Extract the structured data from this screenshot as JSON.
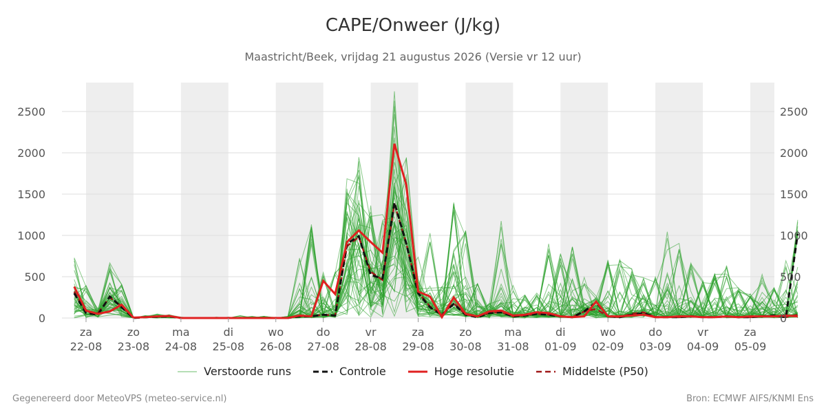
{
  "chart_data": {
    "type": "line",
    "title": "CAPE/Onweer (J/kg)",
    "subtitle": "Maastricht/Beek, vrijdag 21 augustus 2026 (Versie vr 12 uur)",
    "ylim": [
      0,
      2850
    ],
    "y_ticks": [
      0,
      500,
      1000,
      1500,
      2000,
      2500
    ],
    "x_ticks": [
      {
        "day": "za",
        "date": "22-08"
      },
      {
        "day": "zo",
        "date": "23-08"
      },
      {
        "day": "ma",
        "date": "24-08"
      },
      {
        "day": "di",
        "date": "25-08"
      },
      {
        "day": "wo",
        "date": "26-08"
      },
      {
        "day": "do",
        "date": "27-08"
      },
      {
        "day": "vr",
        "date": "28-08"
      },
      {
        "day": "za",
        "date": "29-08"
      },
      {
        "day": "zo",
        "date": "30-08"
      },
      {
        "day": "ma",
        "date": "31-08"
      },
      {
        "day": "di",
        "date": "01-09"
      },
      {
        "day": "wo",
        "date": "02-09"
      },
      {
        "day": "do",
        "date": "03-09"
      },
      {
        "day": "vr",
        "date": "04-09"
      },
      {
        "day": "za",
        "date": "05-09"
      }
    ],
    "x_start": "2026-08-21 18:00",
    "x_step_hours": 6,
    "x_end": "2026-09-05 12:00",
    "grid": true,
    "legend_position": "bottom",
    "colors": {
      "ensemble": "#2ca02c",
      "control": "#111111",
      "hires": "#e02020",
      "median": "#a01818",
      "weekend_band": "#eeeeee",
      "grid": "#dddddd"
    },
    "series": [
      {
        "name": "Hoge resolutie",
        "style": "solid",
        "values": [
          380,
          90,
          50,
          80,
          160,
          5,
          10,
          20,
          25,
          0,
          0,
          0,
          0,
          0,
          0,
          0,
          0,
          0,
          0,
          30,
          20,
          450,
          290,
          920,
          1060,
          920,
          790,
          2110,
          1610,
          320,
          260,
          10,
          250,
          50,
          20,
          80,
          90,
          30,
          40,
          70,
          60,
          20,
          10,
          20,
          200,
          20,
          20,
          30,
          40,
          10,
          10,
          20,
          20,
          10,
          10,
          20,
          10,
          20,
          20,
          20,
          30,
          20
        ]
      },
      {
        "name": "Controle",
        "style": "dashed",
        "values": [
          300,
          60,
          40,
          260,
          130,
          0,
          10,
          15,
          20,
          0,
          0,
          0,
          0,
          0,
          0,
          0,
          0,
          0,
          0,
          20,
          20,
          40,
          30,
          900,
          990,
          520,
          480,
          1400,
          900,
          300,
          130,
          40,
          170,
          40,
          10,
          60,
          70,
          20,
          30,
          50,
          40,
          20,
          10,
          80,
          190,
          20,
          10,
          40,
          60,
          10,
          10,
          10,
          20,
          10,
          10,
          20,
          10,
          10,
          20,
          30,
          10,
          1020
        ]
      },
      {
        "name": "Middelste (P50)",
        "style": "dashed",
        "values": [
          320,
          70,
          60,
          250,
          140,
          0,
          10,
          15,
          20,
          0,
          0,
          0,
          0,
          0,
          0,
          0,
          0,
          0,
          0,
          20,
          20,
          40,
          30,
          870,
          980,
          560,
          460,
          1380,
          900,
          310,
          140,
          40,
          180,
          40,
          20,
          60,
          70,
          20,
          30,
          50,
          40,
          20,
          10,
          80,
          110,
          20,
          10,
          50,
          70,
          10,
          10,
          10,
          20,
          10,
          10,
          20,
          10,
          10,
          20,
          20,
          10,
          40
        ]
      },
      {
        "name": "Verstoorde runs",
        "style": "thin",
        "members": 50,
        "envelope_max": [
          740,
          400,
          120,
          730,
          420,
          10,
          30,
          50,
          40,
          10,
          5,
          5,
          10,
          10,
          30,
          20,
          20,
          10,
          20,
          740,
          1170,
          640,
          580,
          1750,
          2080,
          1400,
          1260,
          2850,
          2030,
          800,
          1070,
          380,
          1600,
          1080,
          470,
          180,
          1180,
          430,
          280,
          310,
          930,
          820,
          960,
          500,
          270,
          800,
          710,
          620,
          500,
          500,
          1050,
          910,
          680,
          460,
          540,
          650,
          370,
          300,
          540,
          380,
          720,
          1200
        ]
      }
    ]
  },
  "legend": {
    "items": [
      {
        "label": "Verstoorde runs"
      },
      {
        "label": "Controle"
      },
      {
        "label": "Hoge resolutie"
      },
      {
        "label": "Middelste (P50)"
      }
    ]
  },
  "footer": {
    "left": "Gegenereerd door MeteoVPS (meteo-service.nl)",
    "right": "Bron: ECMWF AIFS/KNMI Ens"
  }
}
